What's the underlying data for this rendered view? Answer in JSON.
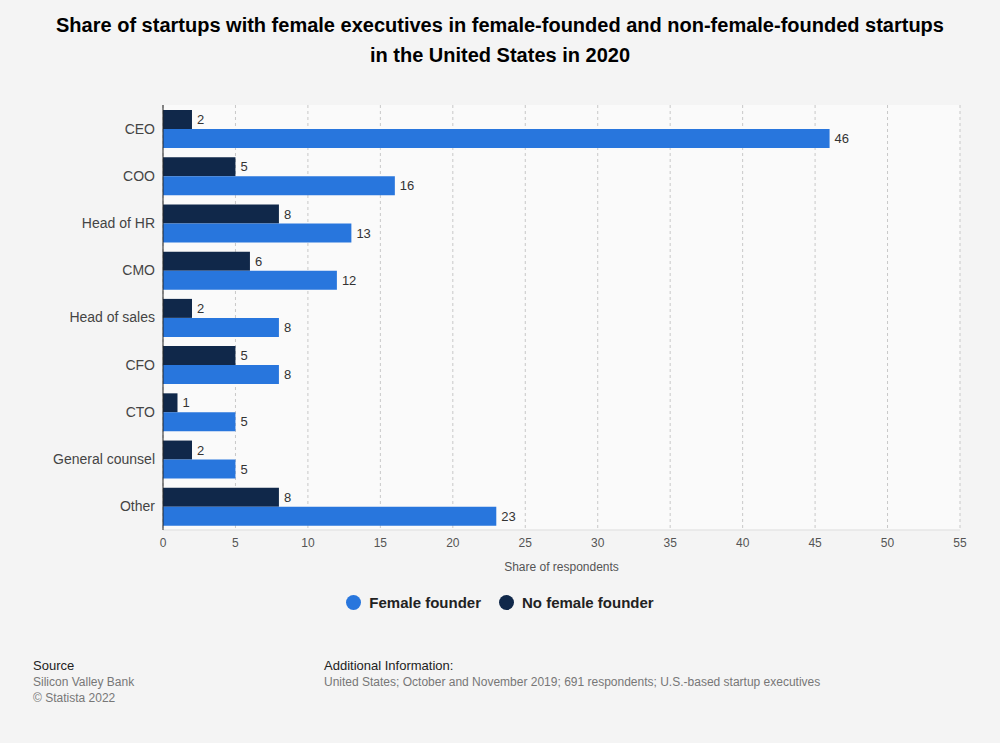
{
  "chart_data": {
    "type": "bar",
    "title": "Share of startups with female executives in female-founded and non-female-founded startups in the United States in 2020",
    "orientation": "horizontal",
    "categories": [
      "CEO",
      "COO",
      "Head of HR",
      "CMO",
      "Head of sales",
      "CFO",
      "CTO",
      "General counsel",
      "Other"
    ],
    "series": [
      {
        "name": "Female founder",
        "color": "#2876dd",
        "values": [
          46,
          16,
          13,
          12,
          8,
          8,
          5,
          5,
          23
        ]
      },
      {
        "name": "No female founder",
        "color": "#10284a",
        "values": [
          2,
          5,
          8,
          6,
          2,
          5,
          1,
          2,
          8
        ]
      }
    ],
    "x_label": "Share of respondents",
    "xlim": [
      0,
      55
    ],
    "xticks": [
      0,
      5,
      10,
      15,
      20,
      25,
      30,
      35,
      40,
      45,
      50,
      55
    ],
    "grid": true,
    "data_labels": true,
    "legend": "bottom"
  },
  "footer": {
    "source_heading": "Source",
    "source_lines": [
      "Silicon Valley Bank",
      "© Statista 2022"
    ],
    "info_heading": "Additional Information:",
    "info_text": "United States; October and November 2019; 691 respondents; U.S.-based startup executives"
  }
}
